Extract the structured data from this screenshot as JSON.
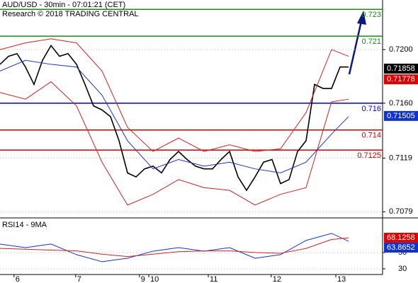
{
  "chart_data": [
    {
      "type": "line",
      "title": "AUD/USD - 30min - 07:01:21 (CET)",
      "subtitle": "Research © 2018 TRADING CENTRAL",
      "xlim": [
        0,
        90
      ],
      "ylim": [
        0.7076,
        0.7237
      ],
      "yticks": [
        {
          "value": 0.72,
          "label": "0.7200"
        },
        {
          "value": 0.716,
          "label": "0.7160"
        },
        0.7119,
        0.7079
      ],
      "grid": true,
      "series": [
        {
          "color": "#000000",
          "x": [
            0,
            2,
            4,
            6,
            8,
            10,
            12,
            14,
            16,
            18,
            20,
            22,
            24,
            26,
            28,
            30,
            32,
            34,
            36,
            38,
            40,
            42,
            44,
            46,
            48,
            50,
            52,
            54,
            56,
            58,
            60,
            62,
            64,
            66,
            68,
            70,
            72,
            74,
            76,
            78,
            80,
            82
          ],
          "values": [
            0.7189,
            0.7195,
            0.7197,
            0.7187,
            0.7174,
            0.7192,
            0.7203,
            0.7195,
            0.7197,
            0.7189,
            0.7174,
            0.7158,
            0.7155,
            0.715,
            0.7132,
            0.7108,
            0.7105,
            0.7111,
            0.7113,
            0.7108,
            0.7118,
            0.7124,
            0.7118,
            0.7113,
            0.7111,
            0.7111,
            0.7118,
            0.7124,
            0.7105,
            0.7095,
            0.7105,
            0.7116,
            0.7118,
            0.71,
            0.7103,
            0.7124,
            0.7132,
            0.7174,
            0.7171,
            0.7171,
            0.7187,
            0.7187
          ]
        },
        {
          "color": "#cc2222",
          "x": [
            0,
            6,
            12,
            18,
            24,
            30,
            36,
            42,
            48,
            54,
            60,
            66,
            72,
            78,
            82
          ],
          "values": [
            0.72,
            0.7205,
            0.7208,
            0.7205,
            0.7184,
            0.7142,
            0.7124,
            0.7134,
            0.7124,
            0.7129,
            0.7124,
            0.7126,
            0.7153,
            0.72,
            0.7195
          ]
        },
        {
          "color": "#cc2222",
          "x": [
            0,
            6,
            12,
            18,
            24,
            30,
            36,
            42,
            48,
            54,
            60,
            66,
            72,
            78,
            82
          ],
          "values": [
            0.7168,
            0.7163,
            0.7176,
            0.7158,
            0.7116,
            0.7084,
            0.7092,
            0.7103,
            0.7097,
            0.7095,
            0.7084,
            0.7092,
            0.7097,
            0.7161,
            0.7163
          ]
        },
        {
          "color": "#2233bb",
          "x": [
            0,
            6,
            12,
            18,
            24,
            30,
            36,
            42,
            48,
            54,
            60,
            66,
            72,
            78,
            82
          ],
          "values": [
            0.7184,
            0.7192,
            0.7189,
            0.7187,
            0.7166,
            0.7132,
            0.7111,
            0.7118,
            0.7113,
            0.7116,
            0.7111,
            0.7108,
            0.7116,
            0.7137,
            0.715
          ]
        }
      ],
      "levels": [
        {
          "value": 0.723,
          "color": "#1a8a1a"
        },
        {
          "value": 0.721,
          "color": "#1a8a1a"
        },
        {
          "value": 0.716,
          "color": "#0000cc"
        },
        {
          "value": 0.714,
          "color": "#cc0000"
        },
        {
          "value": 0.7125,
          "color": "#cc0000"
        }
      ],
      "value_tags": [
        {
          "value": 0.71858,
          "color": "#000000"
        },
        {
          "value": 0.71778,
          "color": "#dd0000"
        },
        {
          "value": 0.71505,
          "color": "#1133cc"
        }
      ]
    },
    {
      "type": "line",
      "title": "RSI14 - 9MA",
      "xlim": [
        0,
        90
      ],
      "ylim": [
        23,
        89
      ],
      "yticks": [
        50,
        30
      ],
      "grid": true,
      "xticks": [
        {
          "value": 3.3,
          "label": "6"
        },
        {
          "value": 17.8,
          "label": "7"
        },
        {
          "value": 32.8,
          "label": "9"
        },
        {
          "value": 35,
          "label": "10"
        },
        {
          "value": 49,
          "label": "11"
        },
        {
          "value": 63.8,
          "label": "12"
        },
        {
          "value": 79,
          "label": "13"
        }
      ],
      "series": [
        {
          "color": "#1133cc",
          "x": [
            0,
            6,
            12,
            18,
            24,
            30,
            36,
            42,
            48,
            54,
            60,
            66,
            72,
            78,
            82
          ],
          "values": [
            60.4,
            56,
            60.4,
            47.4,
            38.7,
            43,
            51.7,
            56,
            51.7,
            56,
            43,
            47.4,
            64.8,
            73.5,
            63.9
          ]
        },
        {
          "color": "#cc2222",
          "x": [
            0,
            6,
            12,
            18,
            24,
            30,
            36,
            42,
            48,
            54,
            60,
            66,
            72,
            78,
            82
          ],
          "values": [
            55,
            54,
            53,
            52,
            48,
            45,
            48,
            51,
            52,
            52,
            50,
            49,
            55,
            66,
            68.1
          ]
        }
      ],
      "value_tags": [
        {
          "value": 68.1258,
          "color": "#dd0000"
        },
        {
          "value": 63.8652,
          "color": "#1133cc"
        }
      ]
    }
  ]
}
